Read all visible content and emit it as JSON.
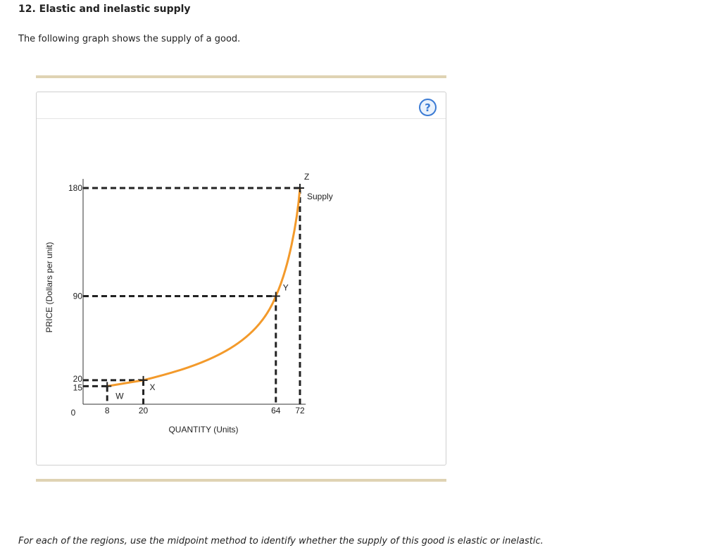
{
  "question": {
    "title": "12. Elastic and inelastic supply",
    "intro": "The following graph shows the supply of a good.",
    "instructions": "For each of the regions, use the midpoint method to identify whether the supply of this good is elastic or inelastic."
  },
  "help": {
    "label": "?"
  },
  "chart_data": {
    "type": "line",
    "xlabel": "QUANTITY (Units)",
    "ylabel": "PRICE (Dollars per unit)",
    "xlim": [
      0,
      80
    ],
    "ylim": [
      0,
      190
    ],
    "origin_label": "0",
    "x_ticks": [
      "8",
      "20",
      "64",
      "72"
    ],
    "y_ticks": [
      "180",
      "90",
      "20",
      "15"
    ],
    "series": [
      {
        "name": "Supply",
        "color": "#f39a2b",
        "points": [
          {
            "label": "W",
            "x": 8,
            "y": 15
          },
          {
            "label": "X",
            "x": 20,
            "y": 20
          },
          {
            "label": "Y",
            "x": 64,
            "y": 90
          },
          {
            "label": "Z",
            "x": 72,
            "y": 180
          }
        ]
      }
    ],
    "grid": false,
    "guide_lines": "dashed"
  }
}
